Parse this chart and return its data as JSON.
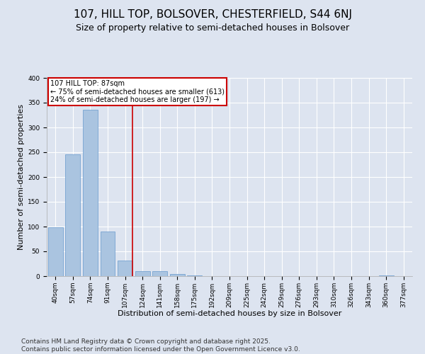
{
  "title1": "107, HILL TOP, BOLSOVER, CHESTERFIELD, S44 6NJ",
  "title2": "Size of property relative to semi-detached houses in Bolsover",
  "xlabel": "Distribution of semi-detached houses by size in Bolsover",
  "ylabel": "Number of semi-detached properties",
  "categories": [
    "40sqm",
    "57sqm",
    "74sqm",
    "91sqm",
    "107sqm",
    "124sqm",
    "141sqm",
    "158sqm",
    "175sqm",
    "192sqm",
    "209sqm",
    "225sqm",
    "242sqm",
    "259sqm",
    "276sqm",
    "293sqm",
    "310sqm",
    "326sqm",
    "343sqm",
    "360sqm",
    "377sqm"
  ],
  "values": [
    99,
    245,
    335,
    90,
    32,
    10,
    10,
    4,
    2,
    0,
    0,
    0,
    0,
    0,
    0,
    0,
    0,
    0,
    0,
    2,
    0
  ],
  "bar_color": "#aac4e0",
  "bar_edge_color": "#6699cc",
  "highlight_bar_index": 4,
  "highlight_line_color": "#cc0000",
  "annotation_text": "107 HILL TOP: 87sqm\n← 75% of semi-detached houses are smaller (613)\n24% of semi-detached houses are larger (197) →",
  "annotation_box_color": "#ffffff",
  "annotation_box_edge_color": "#cc0000",
  "ylim": [
    0,
    400
  ],
  "yticks": [
    0,
    50,
    100,
    150,
    200,
    250,
    300,
    350,
    400
  ],
  "background_color": "#dde4f0",
  "plot_bg_color": "#dde4f0",
  "footer_text": "Contains HM Land Registry data © Crown copyright and database right 2025.\nContains public sector information licensed under the Open Government Licence v3.0.",
  "grid_color": "#ffffff",
  "title1_fontsize": 11,
  "title2_fontsize": 9,
  "xlabel_fontsize": 8,
  "ylabel_fontsize": 8,
  "tick_fontsize": 6.5,
  "footer_fontsize": 6.5
}
